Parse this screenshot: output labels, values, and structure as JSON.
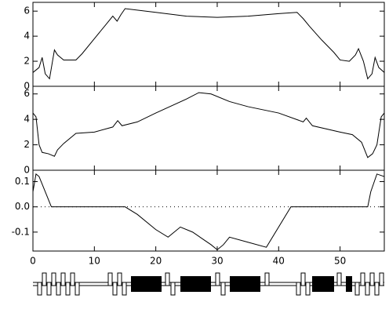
{
  "chart_data": [
    {
      "type": "line",
      "x": [
        0,
        1,
        1.5,
        2,
        2.7,
        3.5,
        4,
        5,
        7,
        8,
        10,
        12,
        13,
        13.7,
        14.3,
        15,
        20,
        25,
        30,
        35,
        40,
        43,
        44,
        45,
        47,
        49,
        50,
        51.5,
        52.5,
        53,
        53.8,
        54.5,
        55.2,
        55.7,
        56.3,
        57.2
      ],
      "values": [
        1.1,
        1.5,
        2.3,
        1.0,
        0.6,
        2.9,
        2.5,
        2.1,
        2.1,
        2.6,
        3.8,
        5.0,
        5.6,
        5.2,
        5.7,
        6.2,
        5.9,
        5.6,
        5.5,
        5.6,
        5.8,
        5.9,
        5.4,
        4.8,
        3.7,
        2.7,
        2.1,
        2.0,
        2.5,
        3.0,
        2.0,
        0.6,
        1.0,
        2.3,
        1.5,
        1.1
      ],
      "color": "#000000",
      "xlim": [
        0,
        57.2
      ],
      "ylim": [
        0,
        6.7
      ],
      "yticks": [
        0,
        2,
        4,
        6
      ]
    },
    {
      "type": "line",
      "x": [
        0,
        0.5,
        1,
        1.5,
        2.5,
        3.5,
        4,
        5,
        7,
        10,
        13,
        13.8,
        14.5,
        17,
        20,
        25,
        27,
        29,
        32,
        35,
        40,
        44,
        44.5,
        45.5,
        50,
        52,
        53.5,
        54.5,
        55.3,
        56,
        56.7,
        57.2
      ],
      "values": [
        4.5,
        4.2,
        2.0,
        1.4,
        1.3,
        1.1,
        1.6,
        2.1,
        2.9,
        3.0,
        3.4,
        3.9,
        3.5,
        3.8,
        4.5,
        5.6,
        6.1,
        6.0,
        5.4,
        5.0,
        4.5,
        3.8,
        4.1,
        3.5,
        3.0,
        2.8,
        2.2,
        1.0,
        1.3,
        2.0,
        4.2,
        4.5
      ],
      "color": "#000000",
      "xlim": [
        0,
        57.2
      ],
      "ylim": [
        0,
        6.6
      ],
      "yticks": [
        0,
        2,
        4,
        6
      ]
    },
    {
      "type": "line",
      "x": [
        0,
        0.5,
        1,
        2,
        3,
        15,
        17,
        20,
        22,
        24,
        26,
        29,
        30,
        31,
        32,
        35,
        38,
        42,
        54.5,
        55,
        56,
        57.2
      ],
      "values": [
        0.06,
        0.13,
        0.12,
        0.06,
        0,
        0,
        -0.03,
        -0.09,
        -0.12,
        -0.08,
        -0.1,
        -0.15,
        -0.17,
        -0.15,
        -0.12,
        -0.14,
        -0.16,
        0,
        0,
        0.06,
        0.13,
        0.12
      ],
      "color": "#000000",
      "xlim": [
        0,
        57.2
      ],
      "ylim": [
        -0.175,
        0.145
      ],
      "yticks": [
        0.1,
        {
          "value": 0,
          "label": "0.0"
        },
        -0.1
      ],
      "xticks": [
        0,
        10,
        20,
        30,
        40,
        50
      ],
      "zero_line": true
    }
  ]
}
